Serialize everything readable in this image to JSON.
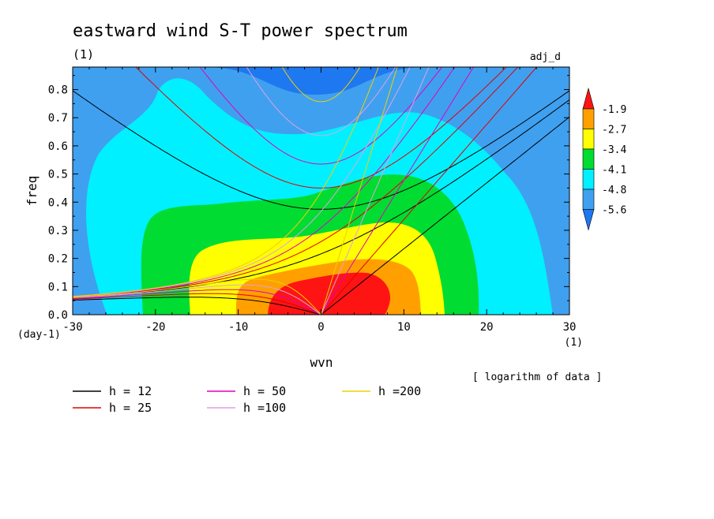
{
  "chart_data": {
    "type": "heatmap",
    "title": "eastward wind S-T power spectrum",
    "subtitle_left": "(1)",
    "subtitle_right": "adj_d",
    "xlabel": "wvn",
    "ylabel": "freq",
    "x_unit": "(1)",
    "y_unit": "(day-1)",
    "xlim": [
      -30,
      30
    ],
    "ylim": [
      0,
      0.88
    ],
    "x_ticks": [
      -30,
      -20,
      -10,
      0,
      10,
      20,
      30
    ],
    "x_tick_labels": [
      "-30",
      "-20",
      "-10",
      "0",
      "10",
      "20",
      "30"
    ],
    "y_ticks": [
      0,
      0.1,
      0.2,
      0.3,
      0.4,
      0.5,
      0.6,
      0.7,
      0.8
    ],
    "y_tick_labels": [
      "0.0",
      "0.1",
      "0.2",
      "0.3",
      "0.4",
      "0.5",
      "0.6",
      "0.7",
      "0.8"
    ],
    "note": "[ logarithm of data ]",
    "colorbar": {
      "levels": [
        -5.6,
        -4.8,
        -4.1,
        -3.4,
        -2.7,
        -1.9
      ],
      "labels": [
        "-5.6",
        "-4.8",
        "-4.1",
        "-3.4",
        "-2.7",
        "-1.9"
      ],
      "colors": [
        "#1e78f0",
        "#3fa0f0",
        "#00f0ff",
        "#00dc32",
        "#ffff00",
        "#ffa000",
        "#ff1414"
      ]
    },
    "contour_regions": [
      {
        "level": "below -5.6",
        "color": "#1e78f0",
        "label": "< -5.6"
      },
      {
        "level": "-5.6 to -4.8",
        "color": "#3fa0f0"
      },
      {
        "level": "-4.8 to -4.1",
        "color": "#00f0ff"
      },
      {
        "level": "-4.1 to -3.4",
        "color": "#00dc32"
      },
      {
        "level": "-3.4 to -2.7",
        "color": "#ffff00"
      },
      {
        "level": "-2.7 to -1.9",
        "color": "#ffa000"
      },
      {
        "level": "above -1.9",
        "color": "#ff1414"
      }
    ],
    "dispersion_curves": {
      "equivalent_depths": [
        12,
        25,
        50,
        100,
        200
      ],
      "colors": [
        "#000000",
        "#e00000",
        "#e000c0",
        "#e0a0e0",
        "#f0d000"
      ],
      "legend_labels": [
        "h = 12",
        "h = 25",
        "h = 50",
        "h =100",
        "h =200"
      ]
    }
  }
}
